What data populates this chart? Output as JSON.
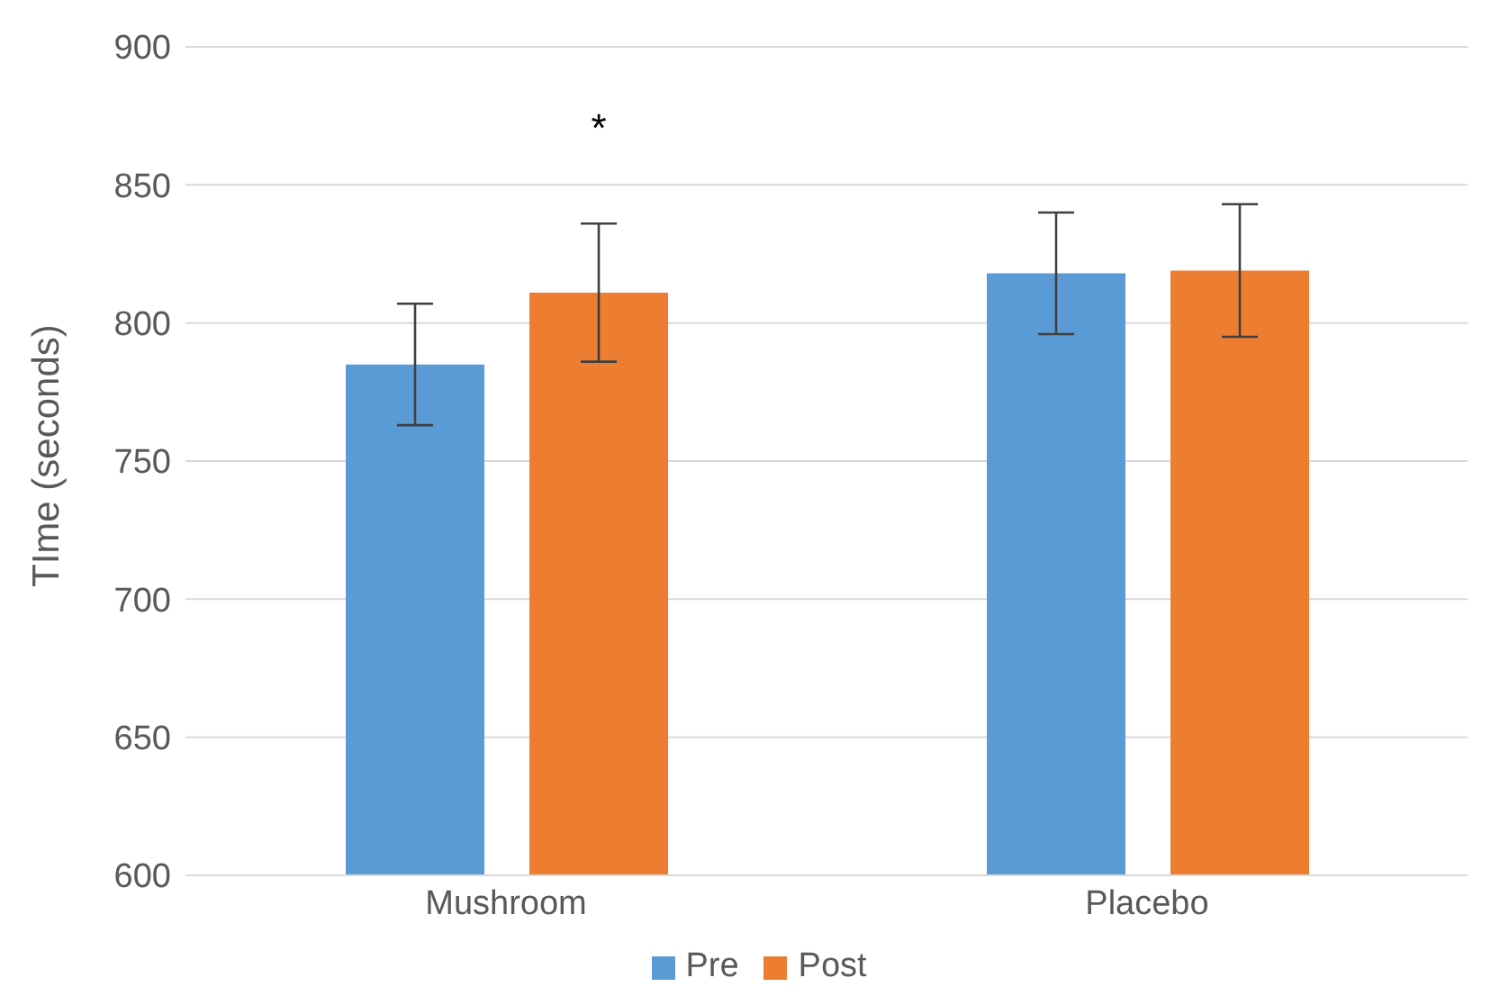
{
  "chart_data": {
    "type": "bar",
    "ylabel": "TIme (seconds)",
    "categories": [
      "Mushroom",
      "Placebo"
    ],
    "series": [
      {
        "name": "Pre",
        "color": "#5b9bd5",
        "values": [
          785,
          818
        ],
        "errors": [
          22,
          22
        ]
      },
      {
        "name": "Post",
        "color": "#ed7d31",
        "values": [
          811,
          819
        ],
        "errors": [
          25,
          24
        ]
      }
    ],
    "ylim": [
      600,
      900
    ],
    "yticks": [
      600,
      650,
      700,
      750,
      800,
      850,
      900
    ],
    "grid": "y",
    "legend": "bottom",
    "annotations": [
      "*"
    ]
  }
}
